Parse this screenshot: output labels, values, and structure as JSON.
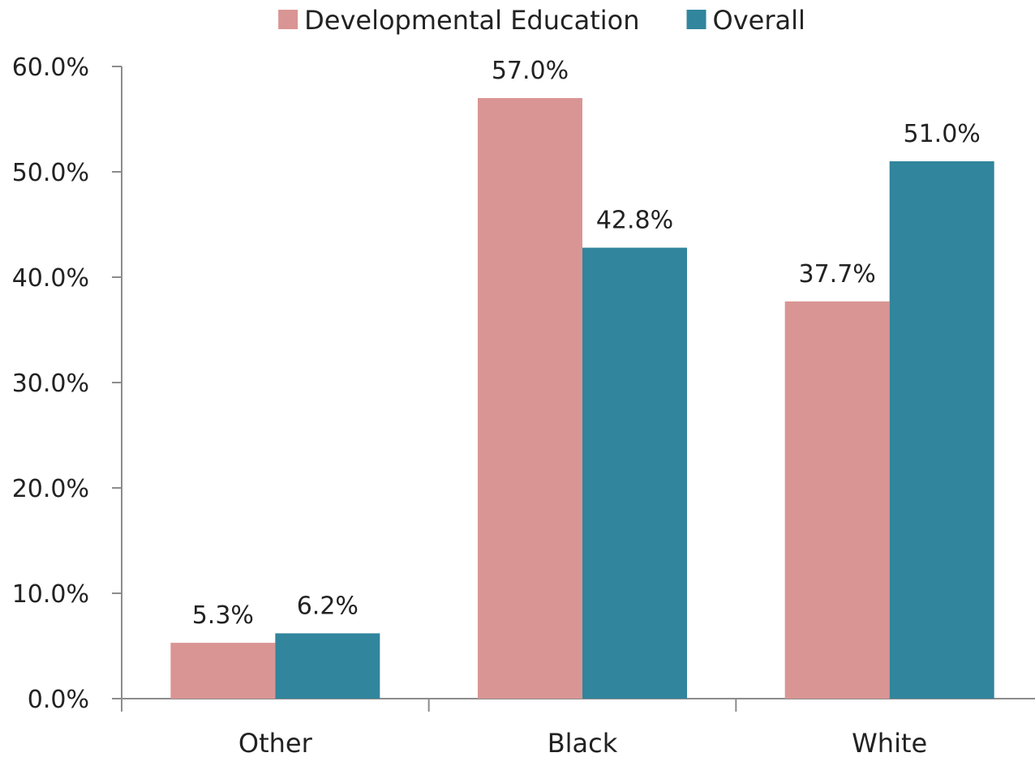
{
  "chart_data": {
    "type": "bar",
    "title": "",
    "xlabel": "",
    "ylabel": "",
    "categories": [
      "Other",
      "Black",
      "White"
    ],
    "series": [
      {
        "name": "Developmental Education",
        "values": [
          5.3,
          57.0,
          37.7
        ],
        "labels": [
          "5.3%",
          "57.0%",
          "37.7%"
        ],
        "color": "#d99594"
      },
      {
        "name": "Overall",
        "values": [
          6.2,
          42.8,
          51.0
        ],
        "labels": [
          "6.2%",
          "42.8%",
          "51.0%"
        ],
        "color": "#31859c"
      }
    ],
    "ylim": [
      0,
      60
    ],
    "yticks": [
      0,
      10,
      20,
      30,
      40,
      50,
      60
    ],
    "ytick_labels": [
      "0.0%",
      "10.0%",
      "20.0%",
      "30.0%",
      "40.0%",
      "50.0%",
      "60.0%"
    ],
    "grid": false,
    "legend_position": "top-center",
    "axis_color": "#8c8c8c"
  }
}
